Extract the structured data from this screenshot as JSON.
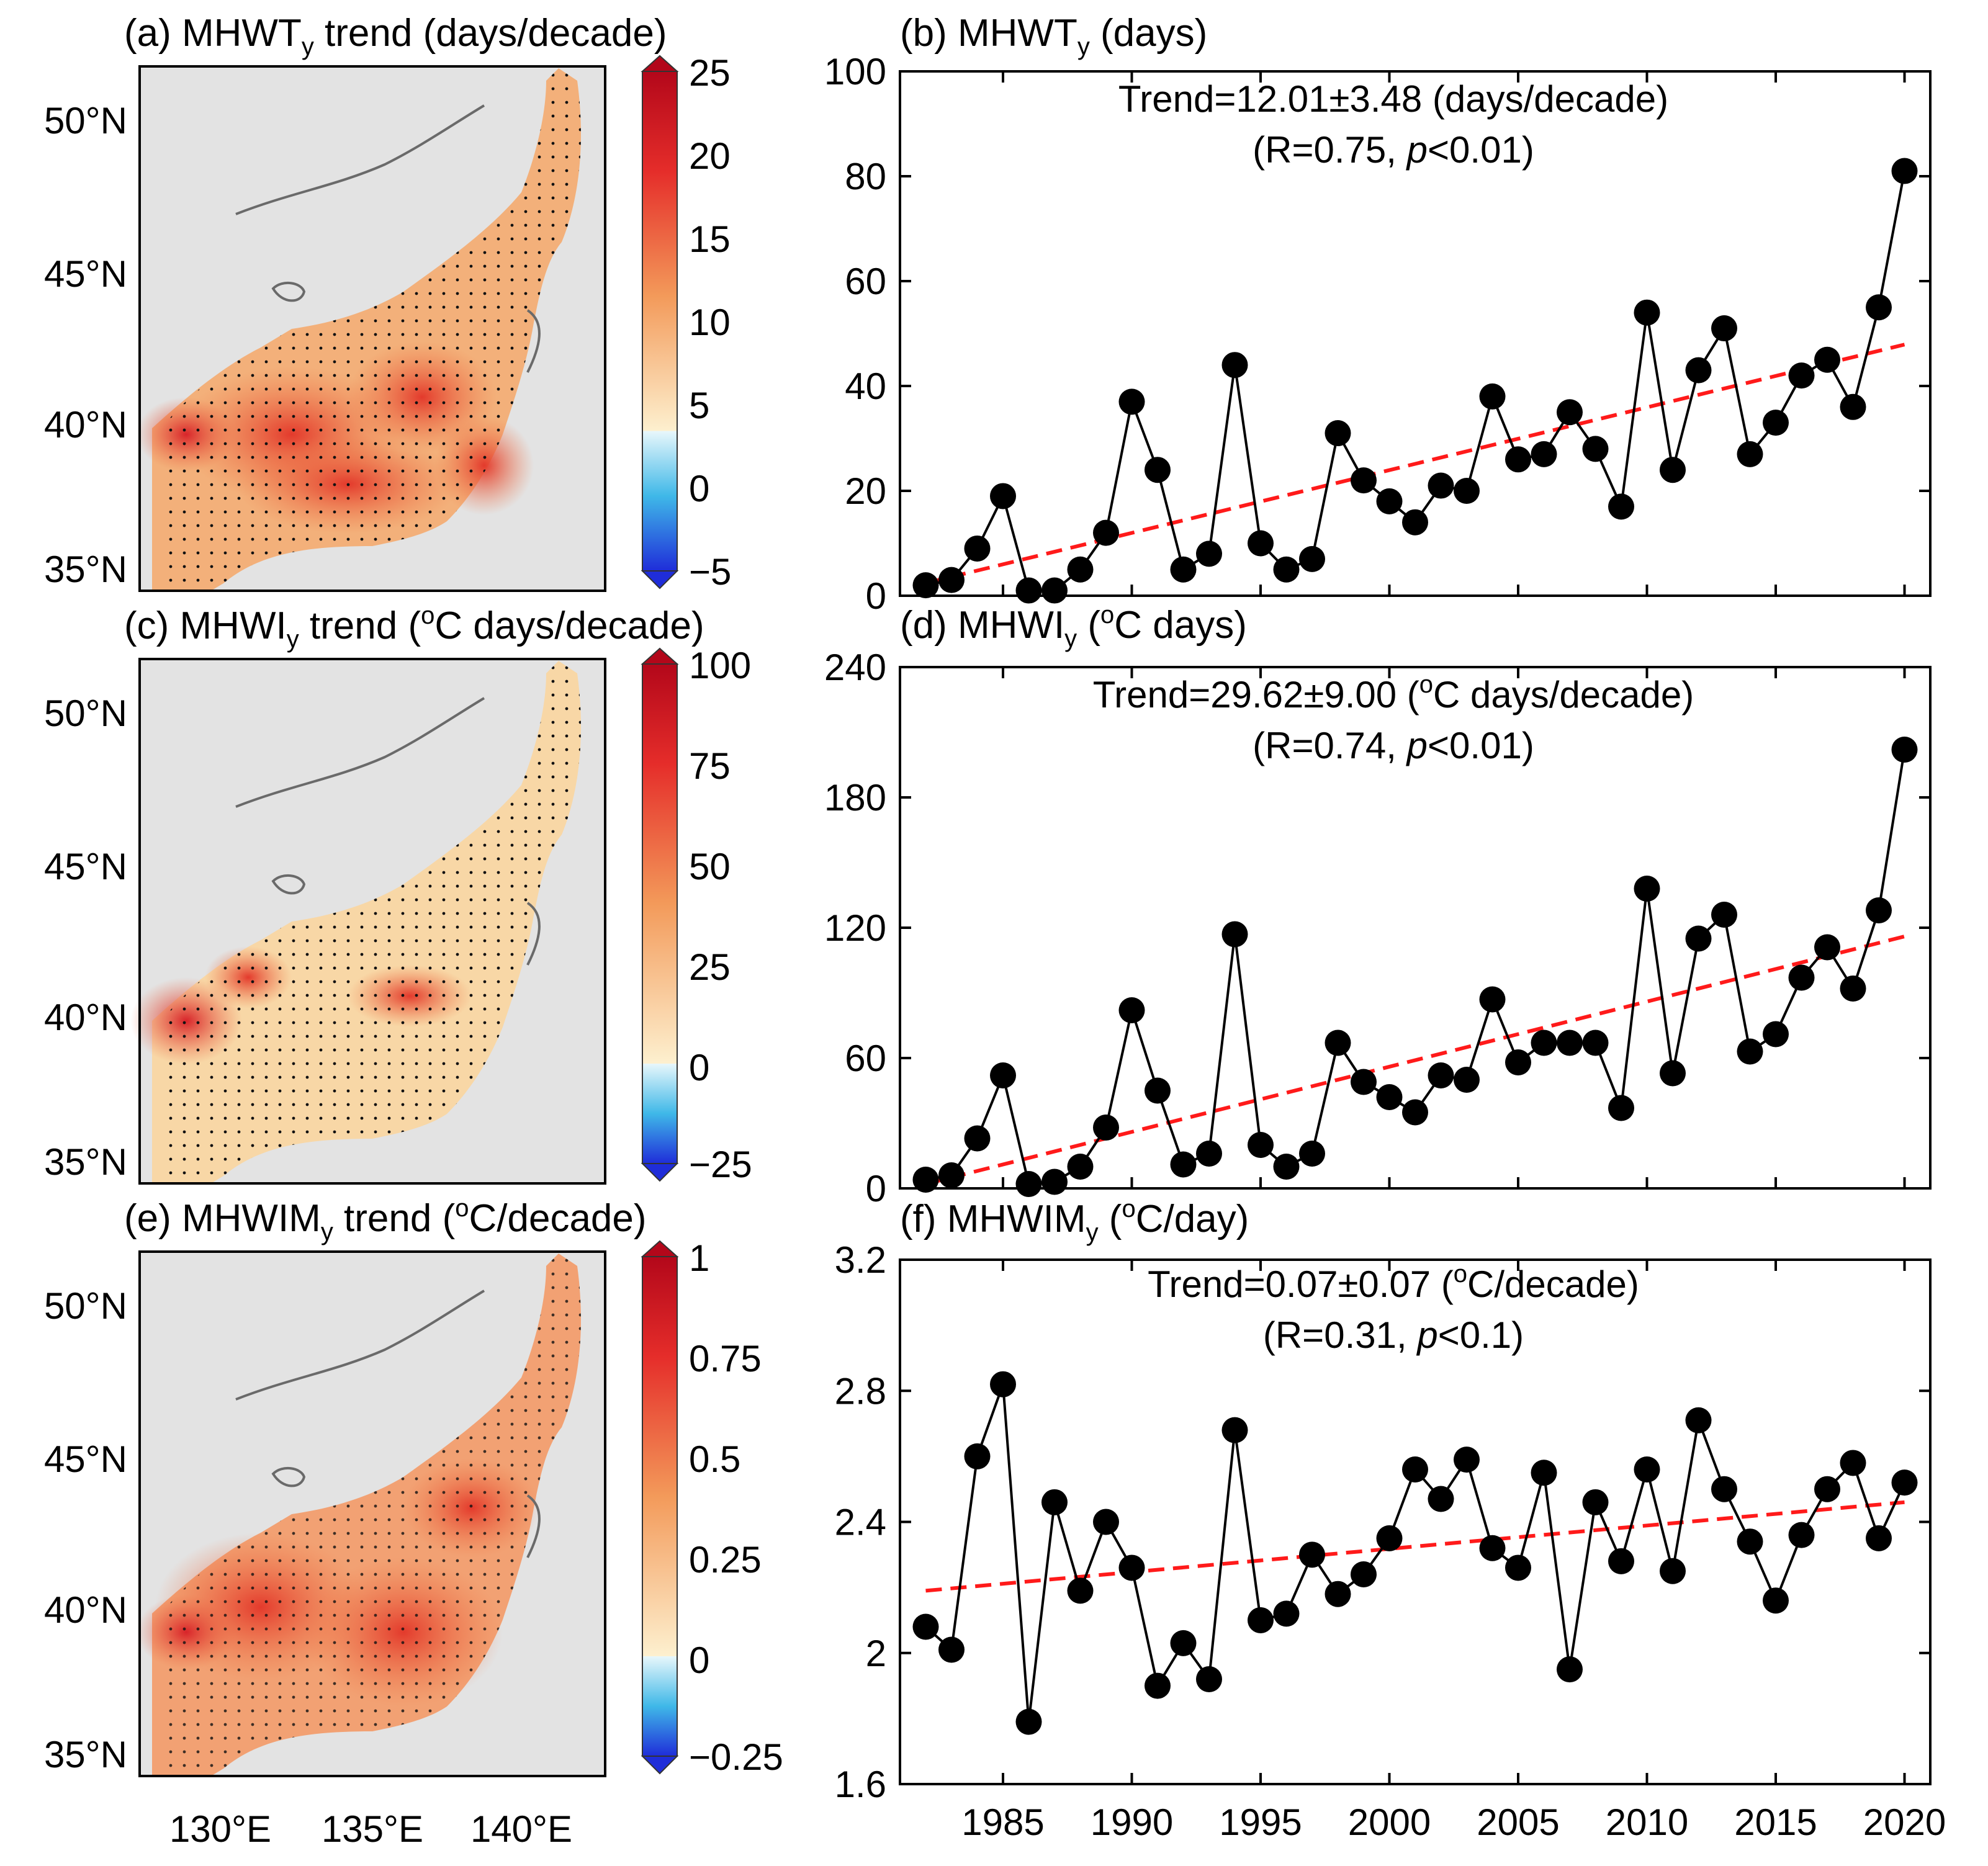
{
  "map_panels": [
    {
      "title": "(a) MHWT",
      "title_sub": "y",
      "title_rest": " trend (days/decade)",
      "colorbar_ticks": [
        "25",
        "20",
        "15",
        "10",
        "5",
        "0",
        "−5"
      ],
      "lat_ticks": [
        "50°N",
        "45°N",
        "40°N",
        "35°N"
      ]
    },
    {
      "title": "(c) MHWI",
      "title_sub": "y",
      "title_rest": " trend (",
      "title_sup": "o",
      "title_rest2": "C days/decade)",
      "colorbar_ticks": [
        "100",
        "75",
        "50",
        "25",
        "0",
        "−25"
      ],
      "lat_ticks": [
        "50°N",
        "45°N",
        "40°N",
        "35°N"
      ]
    },
    {
      "title": "(e) MHWIM",
      "title_sub": "y",
      "title_rest": " trend (",
      "title_sup": "o",
      "title_rest2": "C/decade)",
      "colorbar_ticks": [
        "1",
        "0.75",
        "0.5",
        "0.25",
        "0",
        "−0.25"
      ],
      "lat_ticks": [
        "50°N",
        "45°N",
        "40°N",
        "35°N"
      ],
      "lon_ticks": [
        "130°E",
        "135°E",
        "140°E"
      ]
    }
  ],
  "colors": {
    "line": "#000000",
    "trend": "#ff1a1a",
    "land": "#e3e3e3",
    "sea_warm": "#e8432e",
    "sea_light": "#f7c79a"
  },
  "chart_data": [
    {
      "type": "line",
      "title": "(b) MHWT",
      "title_sub": "y",
      "title_rest": " (days)",
      "annotation_line1": "Trend=12.01±3.48 (days/decade)",
      "annotation_line2_pre": "(R=0.75, ",
      "annotation_italic": "p",
      "annotation_line2_post": "<0.01)",
      "x": [
        1982,
        1983,
        1984,
        1985,
        1986,
        1987,
        1988,
        1989,
        1990,
        1991,
        1992,
        1993,
        1994,
        1995,
        1996,
        1997,
        1998,
        1999,
        2000,
        2001,
        2002,
        2003,
        2004,
        2005,
        2006,
        2007,
        2008,
        2009,
        2010,
        2011,
        2012,
        2013,
        2014,
        2015,
        2016,
        2017,
        2018,
        2019,
        2020
      ],
      "values": [
        2,
        3,
        9,
        19,
        1,
        1,
        5,
        12,
        37,
        24,
        5,
        8,
        44,
        10,
        5,
        7,
        31,
        22,
        18,
        14,
        21,
        20,
        38,
        26,
        27,
        35,
        28,
        17,
        54,
        24,
        43,
        51,
        27,
        33,
        42,
        45,
        36,
        55,
        81
      ],
      "trend_line": [
        2.4,
        47.9
      ],
      "ylim": [
        0,
        100
      ],
      "yticks": [
        0,
        20,
        40,
        60,
        80,
        100
      ],
      "ytick_labels": [
        "0",
        "20",
        "40",
        "60",
        "80",
        "100"
      ],
      "xlim": [
        1981,
        2021
      ]
    },
    {
      "type": "line",
      "title": "(d) MHWI",
      "title_sub": "y",
      "title_rest": " (",
      "title_sup": "o",
      "title_rest2": "C days)",
      "annotation_line1_pre": "Trend=29.62±9.00 (",
      "annotation_sup": "o",
      "annotation_line1_post": "C days/decade)",
      "annotation_line2_pre": "(R=0.74, ",
      "annotation_italic": "p",
      "annotation_line2_post": "<0.01)",
      "x": [
        1982,
        1983,
        1984,
        1985,
        1986,
        1987,
        1988,
        1989,
        1990,
        1991,
        1992,
        1993,
        1994,
        1995,
        1996,
        1997,
        1998,
        1999,
        2000,
        2001,
        2002,
        2003,
        2004,
        2005,
        2006,
        2007,
        2008,
        2009,
        2010,
        2011,
        2012,
        2013,
        2014,
        2015,
        2016,
        2017,
        2018,
        2019,
        2020
      ],
      "values": [
        4,
        6,
        23,
        52,
        2,
        3,
        10,
        28,
        82,
        45,
        11,
        16,
        117,
        20,
        10,
        16,
        67,
        49,
        42,
        35,
        52,
        50,
        87,
        58,
        67,
        67,
        67,
        37,
        138,
        53,
        115,
        126,
        63,
        71,
        97,
        111,
        92,
        128,
        202
      ],
      "trend_line": [
        2,
        116
      ],
      "ylim": [
        0,
        240
      ],
      "yticks": [
        0,
        60,
        120,
        180,
        240
      ],
      "ytick_labels": [
        "0",
        "60",
        "120",
        "180",
        "240"
      ],
      "xlim": [
        1981,
        2021
      ]
    },
    {
      "type": "line",
      "title": "(f) MHWIM",
      "title_sub": "y",
      "title_rest": " (",
      "title_sup": "o",
      "title_rest2": "C/day)",
      "annotation_line1_pre": "Trend=0.07±0.07 (",
      "annotation_sup": "o",
      "annotation_line1_post": "C/decade)",
      "annotation_line2_pre": "(R=0.31, ",
      "annotation_italic": "p",
      "annotation_line2_post": "<0.1)",
      "x": [
        1982,
        1983,
        1984,
        1985,
        1986,
        1987,
        1988,
        1989,
        1990,
        1991,
        1992,
        1993,
        1994,
        1995,
        1996,
        1997,
        1998,
        1999,
        2000,
        2001,
        2002,
        2003,
        2004,
        2005,
        2006,
        2007,
        2008,
        2009,
        2010,
        2011,
        2012,
        2013,
        2014,
        2015,
        2016,
        2017,
        2018,
        2019,
        2020
      ],
      "values": [
        2.08,
        2.01,
        2.6,
        2.82,
        1.79,
        2.46,
        2.19,
        2.4,
        2.26,
        1.9,
        2.03,
        1.92,
        2.68,
        2.1,
        2.12,
        2.3,
        2.18,
        2.24,
        2.35,
        2.56,
        2.47,
        2.59,
        2.32,
        2.26,
        2.55,
        1.95,
        2.46,
        2.28,
        2.56,
        2.25,
        2.71,
        2.5,
        2.34,
        2.16,
        2.36,
        2.5,
        2.58,
        2.35,
        2.52
      ],
      "trend_line": [
        2.19,
        2.46
      ],
      "ylim": [
        1.6,
        3.2
      ],
      "yticks": [
        1.6,
        2.0,
        2.4,
        2.8,
        3.2
      ],
      "ytick_labels": [
        "1.6",
        "2",
        "2.4",
        "2.8",
        "3.2"
      ],
      "xticks": [
        1985,
        1990,
        1995,
        2000,
        2005,
        2010,
        2015,
        2020
      ],
      "xtick_labels": [
        "1985",
        "1990",
        "1995",
        "2000",
        "2005",
        "2010",
        "2015",
        "2020"
      ],
      "xlim": [
        1981,
        2021
      ]
    }
  ]
}
